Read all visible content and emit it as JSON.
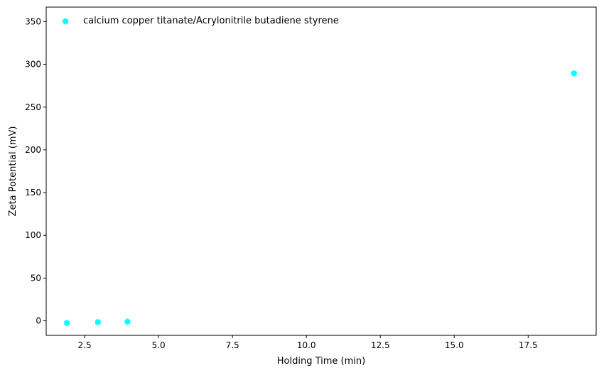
{
  "chart_data": {
    "type": "scatter",
    "title": "",
    "xlabel": "Holding Time (min)",
    "ylabel": "Zeta Potential (mV)",
    "xlim": [
      1.2,
      19.8
    ],
    "ylim": [
      -17,
      367
    ],
    "xticks": [
      2.5,
      5.0,
      7.5,
      10.0,
      12.5,
      15.0,
      17.5
    ],
    "xtick_labels": [
      "2.5",
      "5.0",
      "7.5",
      "10.0",
      "12.5",
      "15.0",
      "17.5"
    ],
    "yticks": [
      0,
      50,
      100,
      150,
      200,
      250,
      300,
      350
    ],
    "ytick_labels": [
      "0",
      "50",
      "100",
      "150",
      "200",
      "250",
      "300",
      "350"
    ],
    "grid": false,
    "legend_position": "upper-left",
    "series": [
      {
        "name": "calcium copper titanate/Acrylonitrile butadiene styrene",
        "color": "#00ffff",
        "marker": "hexagon",
        "x": [
          1.9,
          2.95,
          3.95,
          19.05
        ],
        "y": [
          -2.5,
          -1.5,
          -1.0,
          289.5
        ]
      }
    ]
  }
}
